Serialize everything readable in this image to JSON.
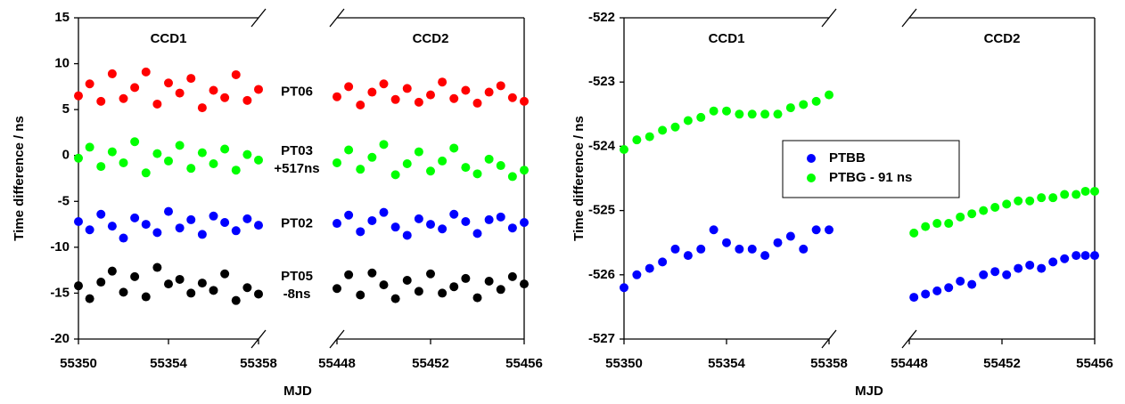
{
  "chart_data": [
    {
      "type": "scatter",
      "ylabel": "Time difference / ns",
      "xlabel": "MJD",
      "ylim": [
        -20,
        15
      ],
      "yticks": [
        -20,
        -15,
        -10,
        -5,
        0,
        5,
        10,
        15
      ],
      "x_segments": [
        {
          "label": "CCD1",
          "xlim": [
            55350,
            55358
          ],
          "xticks": [
            55350,
            55354,
            55358
          ]
        },
        {
          "label": "CCD2",
          "xlim": [
            55448,
            55456
          ],
          "xticks": [
            55448,
            55452,
            55456
          ]
        }
      ],
      "x": [
        55350,
        55350.5,
        55351,
        55351.5,
        55352,
        55352.5,
        55353,
        55353.5,
        55354,
        55354.5,
        55355,
        55355.5,
        55356,
        55356.5,
        55357,
        55357.5,
        55358,
        55448,
        55448.5,
        55449,
        55449.5,
        55450,
        55450.5,
        55451,
        55451.5,
        55452,
        55452.5,
        55453,
        55453.5,
        55454,
        55454.5,
        55455,
        55455.5,
        55456
      ],
      "series": [
        {
          "name": "PT06",
          "color": "#ff0000",
          "values": [
            6.5,
            7.8,
            5.9,
            8.9,
            6.2,
            7.4,
            9.1,
            5.6,
            7.9,
            6.8,
            8.4,
            5.2,
            7.1,
            6.3,
            8.8,
            6.0,
            7.2,
            6.4,
            7.5,
            5.5,
            6.9,
            7.8,
            6.1,
            7.3,
            5.8,
            6.6,
            8.0,
            6.2,
            7.1,
            5.7,
            6.9,
            7.6,
            6.3,
            5.9
          ]
        },
        {
          "name": "PT03 +517ns",
          "color": "#00ff00",
          "values": [
            -0.3,
            0.9,
            -1.2,
            0.4,
            -0.8,
            1.5,
            -1.9,
            0.2,
            -0.6,
            1.1,
            -1.4,
            0.3,
            -0.9,
            0.7,
            -1.6,
            0.1,
            -0.5,
            -0.8,
            0.6,
            -1.5,
            -0.2,
            1.2,
            -2.1,
            -0.9,
            0.4,
            -1.7,
            -0.6,
            0.8,
            -1.3,
            -2.0,
            -0.4,
            -1.1,
            -2.3,
            -1.6
          ]
        },
        {
          "name": "PT02",
          "color": "#0000ff",
          "values": [
            -7.2,
            -8.1,
            -6.4,
            -7.7,
            -9.0,
            -6.8,
            -7.5,
            -8.4,
            -6.1,
            -7.9,
            -7.0,
            -8.6,
            -6.6,
            -7.3,
            -8.2,
            -6.9,
            -7.6,
            -7.4,
            -6.5,
            -8.3,
            -7.1,
            -6.2,
            -7.8,
            -8.7,
            -6.9,
            -7.5,
            -8.0,
            -6.4,
            -7.2,
            -8.5,
            -7.0,
            -6.7,
            -7.9,
            -7.3
          ]
        },
        {
          "name": "PT05 -8ns",
          "color": "#000000",
          "values": [
            -14.2,
            -15.6,
            -13.8,
            -12.6,
            -14.9,
            -13.2,
            -15.4,
            -12.2,
            -14.0,
            -13.5,
            -15.0,
            -13.9,
            -14.7,
            -12.9,
            -15.8,
            -14.4,
            -15.1,
            -14.5,
            -13.0,
            -15.2,
            -12.8,
            -14.1,
            -15.6,
            -13.6,
            -14.8,
            -12.9,
            -15.0,
            -14.3,
            -13.4,
            -15.5,
            -13.7,
            -14.6,
            -13.2,
            -14.0
          ]
        }
      ],
      "legend": "labels"
    },
    {
      "type": "scatter",
      "ylabel": "Time difference / ns",
      "xlabel": "MJD",
      "ylim": [
        -527,
        -522
      ],
      "yticks": [
        -527,
        -526,
        -525,
        -524,
        -523,
        -522
      ],
      "x_segments": [
        {
          "label": "CCD1",
          "xlim": [
            55350,
            55358
          ],
          "xticks": [
            55350,
            55354,
            55358
          ]
        },
        {
          "label": "CCD2",
          "xlim": [
            55448,
            55456
          ],
          "xticks": [
            55448,
            55452,
            55456
          ]
        }
      ],
      "x": [
        55350,
        55350.5,
        55351,
        55351.5,
        55352,
        55352.5,
        55353,
        55353.5,
        55354,
        55354.5,
        55355,
        55355.5,
        55356,
        55356.5,
        55357,
        55357.5,
        55358,
        55448.2,
        55448.7,
        55449.2,
        55449.7,
        55450.2,
        55450.7,
        55451.2,
        55451.7,
        55452.2,
        55452.7,
        55453.2,
        55453.7,
        55454.2,
        55454.7,
        55455.2,
        55455.6,
        55456
      ],
      "series": [
        {
          "name": "PTBB",
          "color": "#0000ff",
          "values": [
            -526.2,
            -526.0,
            -525.9,
            -525.8,
            -525.6,
            -525.7,
            -525.6,
            -525.3,
            -525.5,
            -525.6,
            -525.6,
            -525.7,
            -525.5,
            -525.4,
            -525.6,
            -525.3,
            -525.3,
            -526.35,
            -526.3,
            -526.25,
            -526.2,
            -526.1,
            -526.15,
            -526.0,
            -525.95,
            -526.0,
            -525.9,
            -525.85,
            -525.9,
            -525.8,
            -525.75,
            -525.7,
            -525.7,
            -525.7
          ]
        },
        {
          "name": "PTBG - 91 ns",
          "color": "#00ff00",
          "values": [
            -524.05,
            -523.9,
            -523.85,
            -523.75,
            -523.7,
            -523.6,
            -523.55,
            -523.45,
            -523.45,
            -523.5,
            -523.5,
            -523.5,
            -523.5,
            -523.4,
            -523.35,
            -523.3,
            -523.2,
            -525.35,
            -525.25,
            -525.2,
            -525.2,
            -525.1,
            -525.05,
            -525.0,
            -524.95,
            -524.9,
            -524.85,
            -524.85,
            -524.8,
            -524.8,
            -524.75,
            -524.75,
            -524.7,
            -524.7
          ]
        }
      ],
      "legend": "center"
    }
  ]
}
